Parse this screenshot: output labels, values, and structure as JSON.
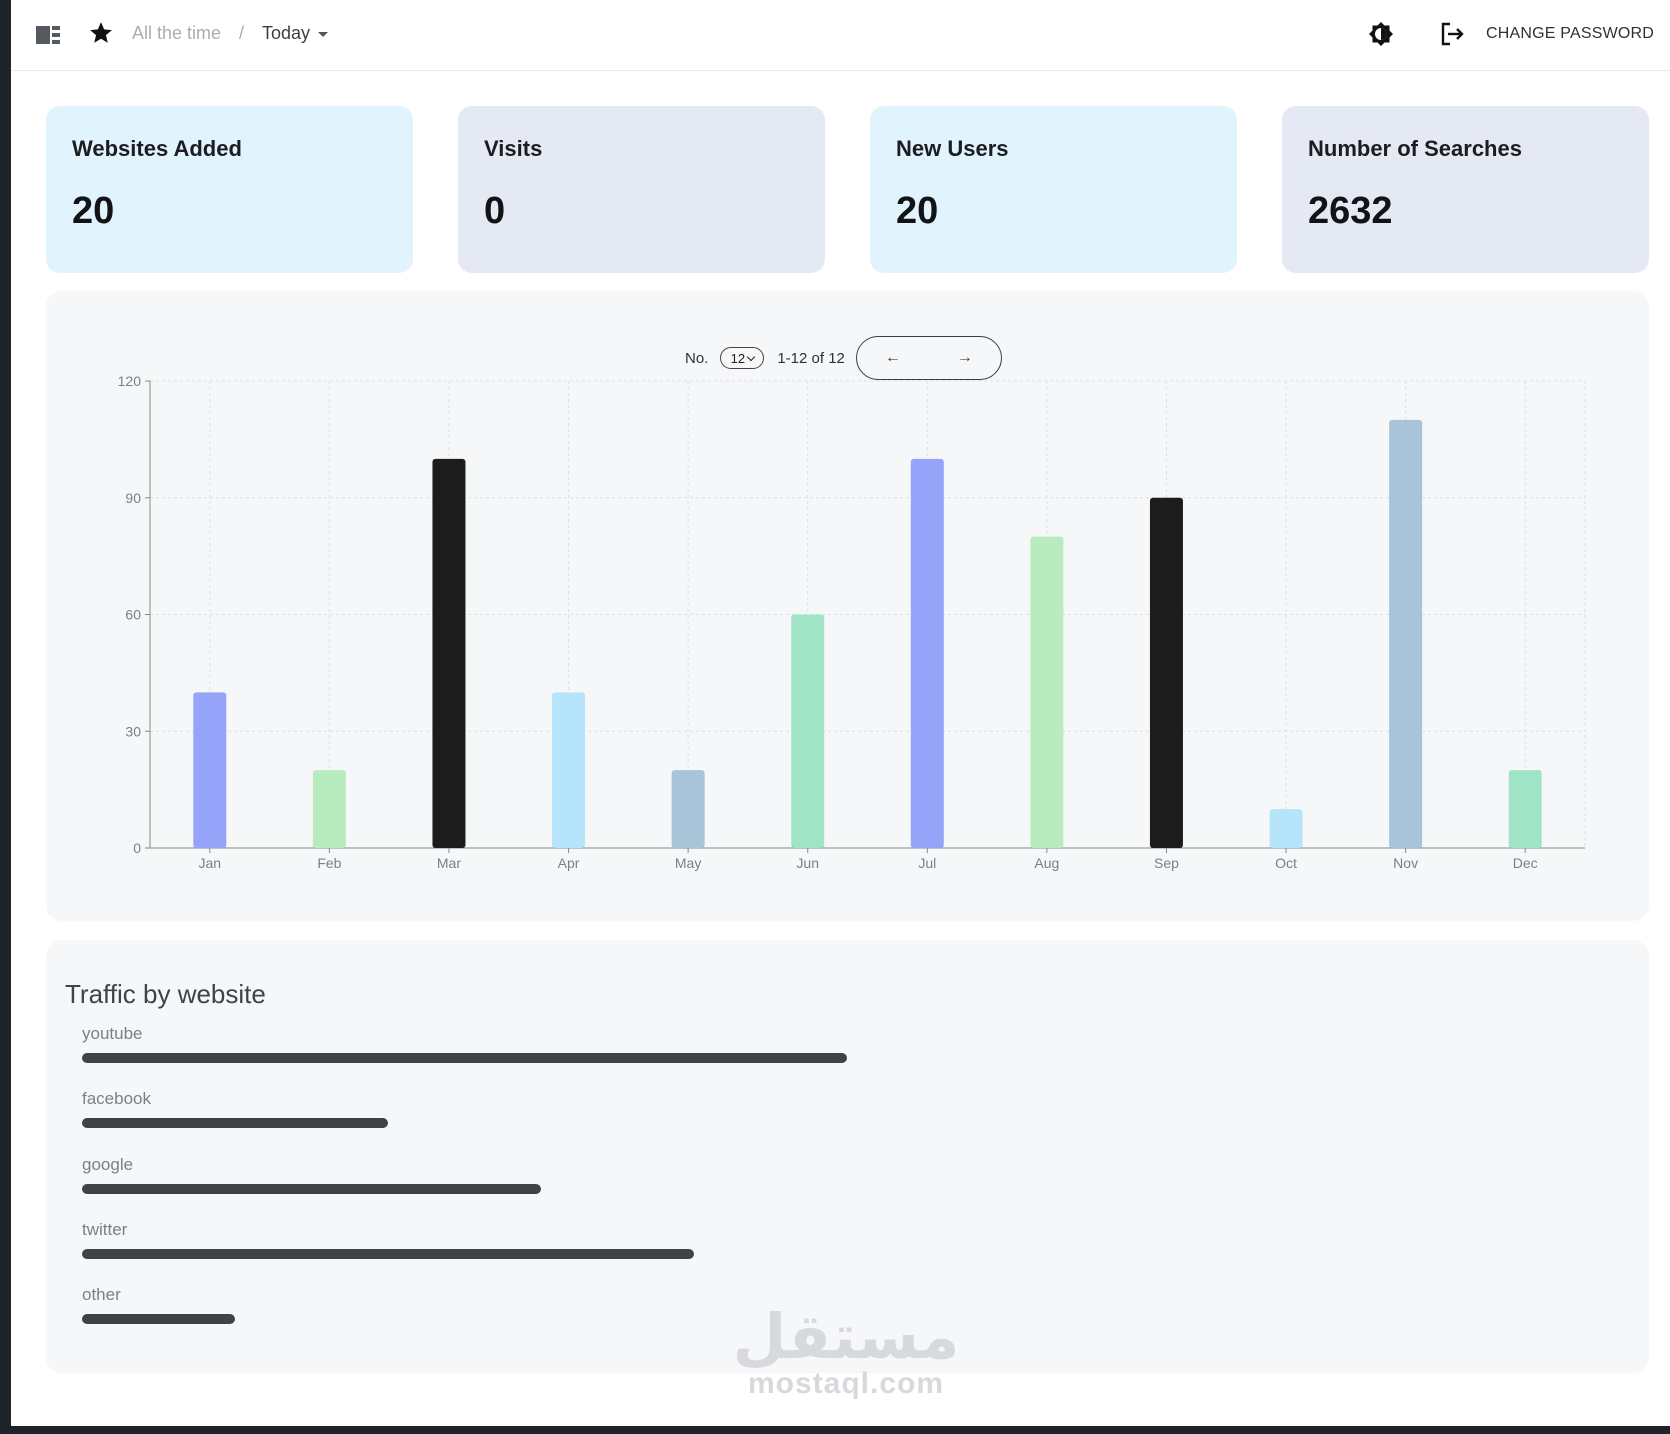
{
  "header": {
    "breadcrumb_all": "All the time",
    "breadcrumb_separator": "/",
    "breadcrumb_today": "Today",
    "change_password": "CHANGE PASSWORD",
    "icons": [
      "sidebar-icon",
      "star-icon",
      "theme-toggle-icon",
      "logout-icon"
    ]
  },
  "stats": [
    {
      "title": "Websites Added",
      "value": "20",
      "color": "#e1f3fd"
    },
    {
      "title": "Visits",
      "value": "0",
      "color": "#e5e9f3"
    },
    {
      "title": "New Users",
      "value": "20",
      "color": "#e1f3fd"
    },
    {
      "title": "Number of Searches",
      "value": "2632",
      "color": "#e5e9f3"
    }
  ],
  "pager": {
    "label": "No.",
    "per_page": "12",
    "range": "1-12 of 12",
    "prev": "←",
    "next": "→"
  },
  "chart_data": {
    "type": "bar",
    "categories": [
      "Jan",
      "Feb",
      "Mar",
      "Apr",
      "May",
      "Jun",
      "Jul",
      "Aug",
      "Sep",
      "Oct",
      "Nov",
      "Dec"
    ],
    "values": [
      40,
      20,
      100,
      40,
      20,
      60,
      100,
      80,
      90,
      10,
      110,
      20
    ],
    "colors": [
      "#95a4f8",
      "#b8ecbe",
      "#1c1c1c",
      "#b5e4fb",
      "#a8c4d8",
      "#a0e4c8",
      "#95a4f8",
      "#b8ecbe",
      "#1c1c1c",
      "#b5e4fb",
      "#a8c4d8",
      "#a0e4c8"
    ],
    "yticks": [
      0,
      30,
      60,
      90,
      120
    ],
    "ylim": [
      0,
      120
    ],
    "grid": true
  },
  "traffic": {
    "title": "Traffic by website",
    "items": [
      {
        "name": "youtube",
        "share": 0.5
      },
      {
        "name": "facebook",
        "share": 0.2
      },
      {
        "name": "google",
        "share": 0.3
      },
      {
        "name": "twitter",
        "share": 0.4
      },
      {
        "name": "other",
        "share": 0.1
      }
    ]
  },
  "watermark": {
    "arabic": "مستقل",
    "latin": "mostaql.com"
  }
}
